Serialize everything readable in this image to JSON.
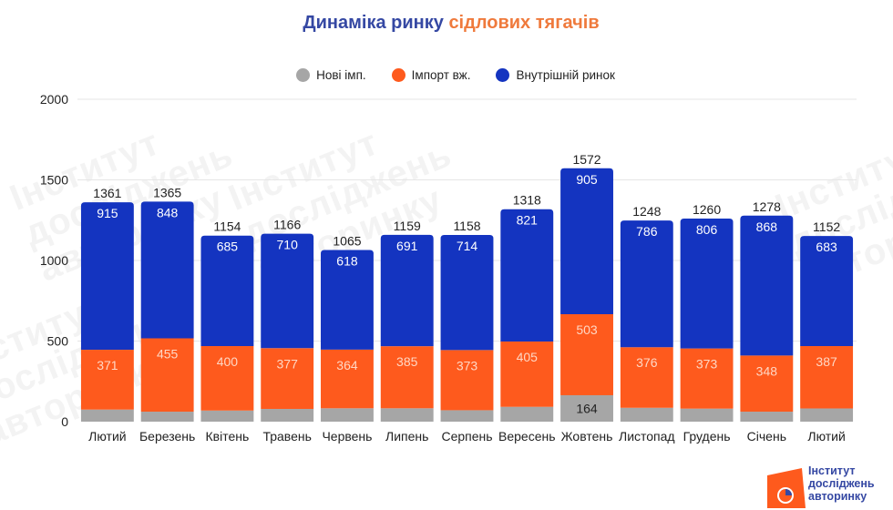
{
  "title": {
    "part1": "Динаміка ринку",
    "part2": "сідлових тягачів"
  },
  "legend": [
    {
      "label": "Нові імп.",
      "color": "#a6a6a6"
    },
    {
      "label": "Імпорт вж.",
      "color": "#fe5a1d"
    },
    {
      "label": "Внутрішній ринок",
      "color": "#1434c0"
    }
  ],
  "watermark": {
    "lines": [
      "Інститут",
      "досліджень",
      "авторинку"
    ]
  },
  "logo": {
    "lines": [
      "Інститут",
      "досліджень",
      "авторинку"
    ],
    "accent": "#fe5a1d",
    "brand": "#3548a3"
  },
  "chart_data": {
    "type": "bar",
    "stacked": true,
    "title": "Динаміка ринку сідлових тягачів",
    "xlabel": "",
    "ylabel": "",
    "ylim": [
      0,
      2000
    ],
    "yticks": [
      0,
      500,
      1000,
      1500,
      2000
    ],
    "grid": true,
    "legend_position": "top-center",
    "categories": [
      "Лютий",
      "Березень",
      "Квітень",
      "Травень",
      "Червень",
      "Липень",
      "Серпень",
      "Вересень",
      "Жовтень",
      "Листопад",
      "Грудень",
      "Січень",
      "Лютий"
    ],
    "series": [
      {
        "name": "Нові імп.",
        "color": "#a6a6a6",
        "values": [
          75,
          62,
          69,
          79,
          83,
          83,
          71,
          92,
          164,
          86,
          81,
          62,
          82
        ],
        "labeled": [
          false,
          false,
          false,
          false,
          false,
          false,
          false,
          false,
          true,
          false,
          false,
          false,
          false
        ]
      },
      {
        "name": "Імпорт вж.",
        "color": "#fe5a1d",
        "values": [
          371,
          455,
          400,
          377,
          364,
          385,
          373,
          405,
          503,
          376,
          373,
          348,
          387
        ]
      },
      {
        "name": "Внутрішній ринок",
        "color": "#1434c0",
        "values": [
          915,
          848,
          685,
          710,
          618,
          691,
          714,
          821,
          905,
          786,
          806,
          868,
          683
        ]
      }
    ],
    "totals": [
      1361,
      1365,
      1154,
      1166,
      1065,
      1159,
      1158,
      1318,
      1572,
      1248,
      1260,
      1278,
      1152
    ]
  }
}
